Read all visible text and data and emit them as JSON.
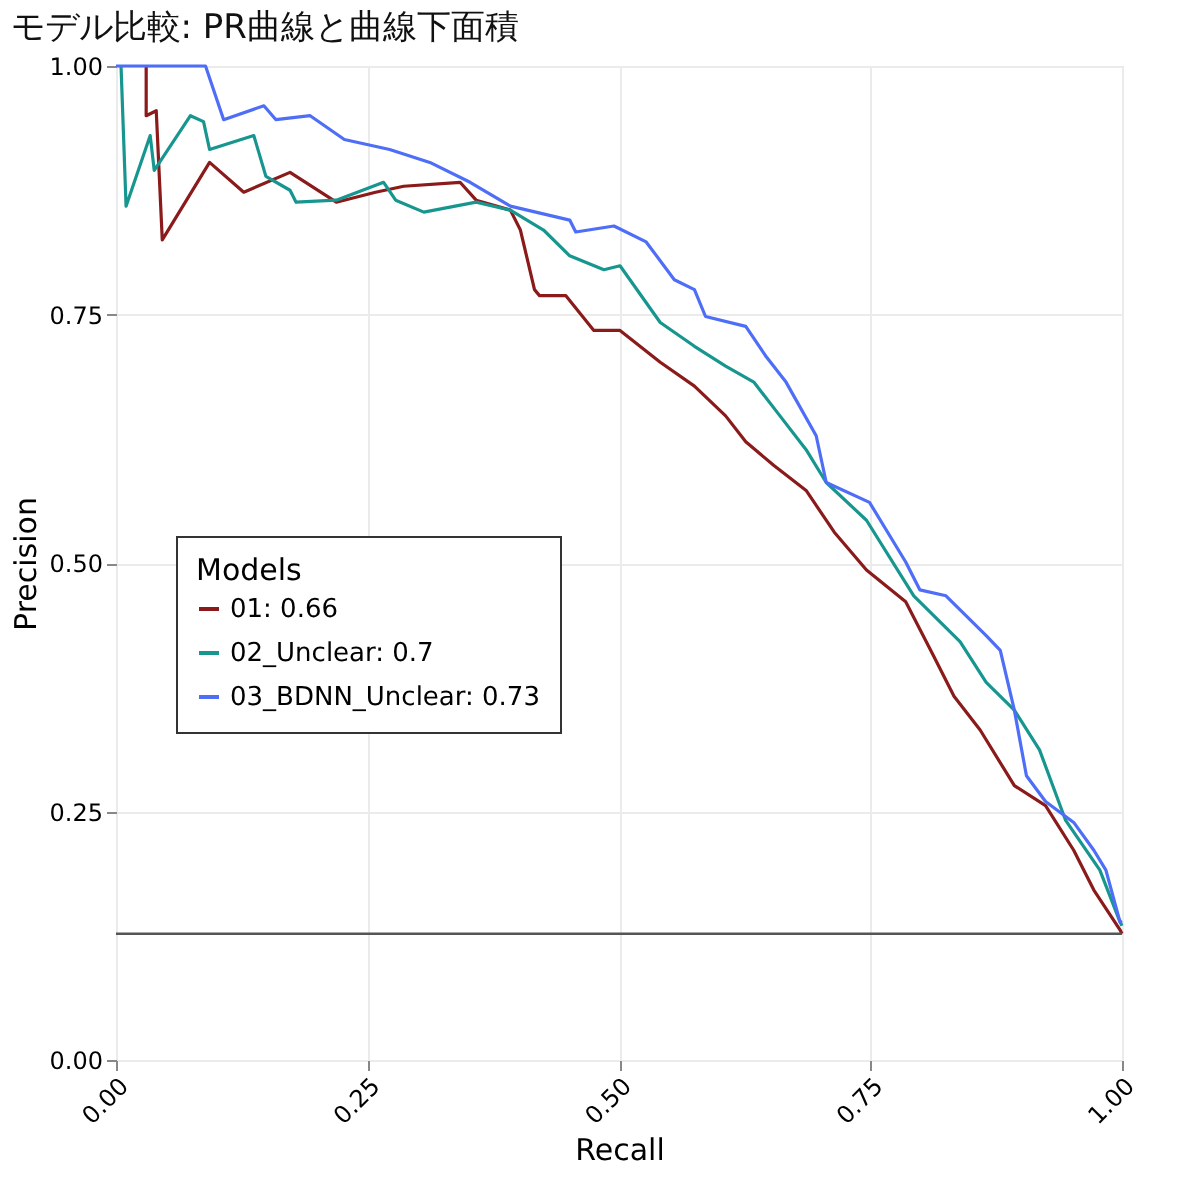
{
  "chart_data": {
    "type": "line",
    "title": "モデル比較: PR曲線と曲線下面積",
    "xlabel": "Recall",
    "ylabel": "Precision",
    "legend_title": "Models",
    "legend": "bottom left",
    "grid": true,
    "line_style": "solid",
    "marker": "none",
    "xlim": [
      0,
      1
    ],
    "ylim": [
      0,
      1
    ],
    "xticks": [
      {
        "value": 0,
        "label": "0.00"
      },
      {
        "value": 0.25,
        "label": "0.25"
      },
      {
        "value": 0.5,
        "label": "0.50"
      },
      {
        "value": 0.75,
        "label": "0.75"
      },
      {
        "value": 1,
        "label": "1.00"
      }
    ],
    "yticks": [
      {
        "value": 0,
        "label": "0.00"
      },
      {
        "value": 0.25,
        "label": "0.25"
      },
      {
        "value": 0.5,
        "label": "0.50"
      },
      {
        "value": 0.75,
        "label": "0.75"
      },
      {
        "value": 1,
        "label": "1.00"
      }
    ],
    "ref_lines": [
      {
        "axis": "y",
        "value": 0.127,
        "color": "#555555"
      }
    ],
    "series": [
      {
        "name": "01: 0.66",
        "color": "#8b1a1a",
        "x": [
          0.03,
          0.03,
          0.04,
          0.046,
          0.093,
          0.127,
          0.173,
          0.219,
          0.258,
          0.286,
          0.342,
          0.358,
          0.392,
          0.402,
          0.416,
          0.421,
          0.447,
          0.475,
          0.501,
          0.541,
          0.575,
          0.606,
          0.626,
          0.654,
          0.686,
          0.714,
          0.746,
          0.785,
          0.813,
          0.833,
          0.859,
          0.893,
          0.924,
          0.952,
          0.972,
          0.998,
          1.0
        ],
        "values": [
          1.0,
          0.95,
          0.955,
          0.825,
          0.903,
          0.873,
          0.893,
          0.863,
          0.873,
          0.879,
          0.883,
          0.865,
          0.855,
          0.835,
          0.775,
          0.769,
          0.769,
          0.734,
          0.734,
          0.702,
          0.678,
          0.648,
          0.622,
          0.598,
          0.573,
          0.531,
          0.493,
          0.461,
          0.406,
          0.366,
          0.332,
          0.276,
          0.256,
          0.211,
          0.171,
          0.131,
          0.127
        ]
      },
      {
        "name": "02_Unclear: 0.7",
        "color": "#17968f",
        "x": [
          0.005,
          0.01,
          0.034,
          0.038,
          0.074,
          0.087,
          0.093,
          0.137,
          0.149,
          0.173,
          0.179,
          0.219,
          0.266,
          0.278,
          0.306,
          0.358,
          0.392,
          0.425,
          0.451,
          0.485,
          0.501,
          0.541,
          0.575,
          0.606,
          0.634,
          0.66,
          0.686,
          0.706,
          0.746,
          0.793,
          0.839,
          0.865,
          0.893,
          0.918,
          0.944,
          0.978,
          0.998,
          1.0
        ],
        "values": [
          1.0,
          0.859,
          0.93,
          0.895,
          0.95,
          0.944,
          0.916,
          0.93,
          0.889,
          0.875,
          0.863,
          0.865,
          0.883,
          0.865,
          0.853,
          0.863,
          0.855,
          0.835,
          0.809,
          0.795,
          0.799,
          0.742,
          0.718,
          0.698,
          0.682,
          0.648,
          0.614,
          0.581,
          0.543,
          0.467,
          0.421,
          0.38,
          0.352,
          0.312,
          0.241,
          0.191,
          0.139,
          0.135
        ]
      },
      {
        "name": "03_BDNN_Unclear: 0.73",
        "color": "#4f6ef7",
        "x": [
          0.0,
          0.089,
          0.107,
          0.147,
          0.159,
          0.193,
          0.227,
          0.272,
          0.312,
          0.352,
          0.392,
          0.451,
          0.457,
          0.495,
          0.527,
          0.555,
          0.575,
          0.586,
          0.626,
          0.646,
          0.666,
          0.696,
          0.706,
          0.749,
          0.785,
          0.799,
          0.825,
          0.865,
          0.879,
          0.893,
          0.905,
          0.924,
          0.952,
          0.972,
          0.984,
          0.998,
          1.0
        ],
        "values": [
          1.0,
          1.0,
          0.946,
          0.96,
          0.946,
          0.95,
          0.926,
          0.916,
          0.903,
          0.883,
          0.859,
          0.845,
          0.833,
          0.839,
          0.823,
          0.785,
          0.775,
          0.748,
          0.738,
          0.708,
          0.682,
          0.628,
          0.581,
          0.561,
          0.501,
          0.473,
          0.467,
          0.427,
          0.412,
          0.352,
          0.286,
          0.26,
          0.239,
          0.211,
          0.191,
          0.139,
          0.14
        ]
      }
    ]
  }
}
